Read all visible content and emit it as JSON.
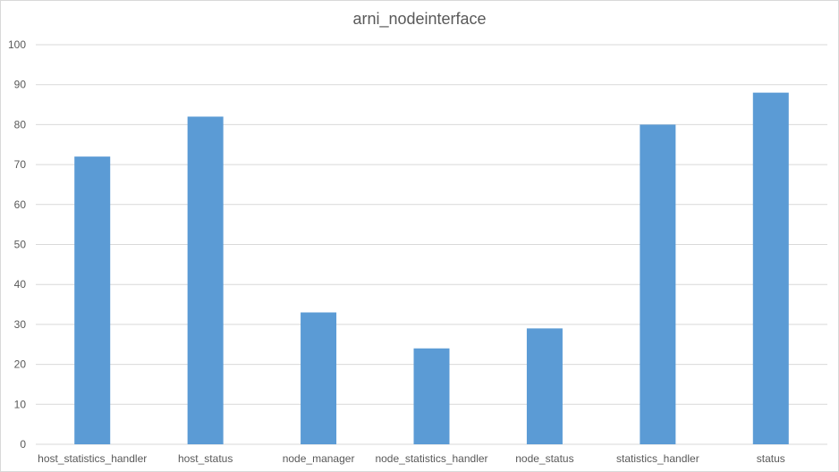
{
  "chart_data": {
    "type": "bar",
    "title": "arni_nodeinterface",
    "xlabel": "",
    "ylabel": "",
    "ylim": [
      0,
      100
    ],
    "yticks": [
      0,
      10,
      20,
      30,
      40,
      50,
      60,
      70,
      80,
      90,
      100
    ],
    "grid": true,
    "legend": "none",
    "categories": [
      "host_statistics_handler",
      "host_status",
      "node_manager",
      "node_statistics_handler",
      "node_status",
      "statistics_handler",
      "status"
    ],
    "values": [
      72,
      82,
      33,
      24,
      29,
      80,
      88
    ],
    "colors": {
      "bar": "#5b9bd5",
      "grid": "#d9d9d9",
      "text": "#595959"
    }
  }
}
